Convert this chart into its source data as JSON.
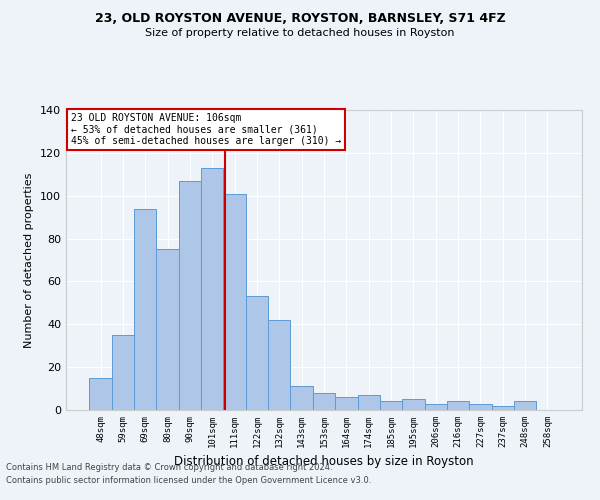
{
  "title1": "23, OLD ROYSTON AVENUE, ROYSTON, BARNSLEY, S71 4FZ",
  "title2": "Size of property relative to detached houses in Royston",
  "xlabel": "Distribution of detached houses by size in Royston",
  "ylabel": "Number of detached properties",
  "categories": [
    "48sqm",
    "59sqm",
    "69sqm",
    "80sqm",
    "90sqm",
    "101sqm",
    "111sqm",
    "122sqm",
    "132sqm",
    "143sqm",
    "153sqm",
    "164sqm",
    "174sqm",
    "185sqm",
    "195sqm",
    "206sqm",
    "216sqm",
    "227sqm",
    "237sqm",
    "248sqm",
    "258sqm"
  ],
  "values": [
    15,
    35,
    94,
    75,
    107,
    113,
    101,
    53,
    42,
    11,
    8,
    6,
    7,
    4,
    5,
    3,
    4,
    3,
    2,
    4,
    0
  ],
  "bar_color": "#aec6e8",
  "bar_edge_color": "#5b9bd5",
  "annotation_line0": "23 OLD ROYSTON AVENUE: 106sqm",
  "annotation_line1": "← 53% of detached houses are smaller (361)",
  "annotation_line2": "45% of semi-detached houses are larger (310) →",
  "vline_x_index": 5.55,
  "ylim": [
    0,
    140
  ],
  "yticks": [
    0,
    20,
    40,
    60,
    80,
    100,
    120,
    140
  ],
  "footnote1": "Contains HM Land Registry data © Crown copyright and database right 2024.",
  "footnote2": "Contains public sector information licensed under the Open Government Licence v3.0.",
  "bg_color": "#eef2f9",
  "grid_color": "#ffffff",
  "annotation_box_color": "#ffffff",
  "annotation_box_edge": "#cc0000",
  "vline_color": "#cc0000"
}
